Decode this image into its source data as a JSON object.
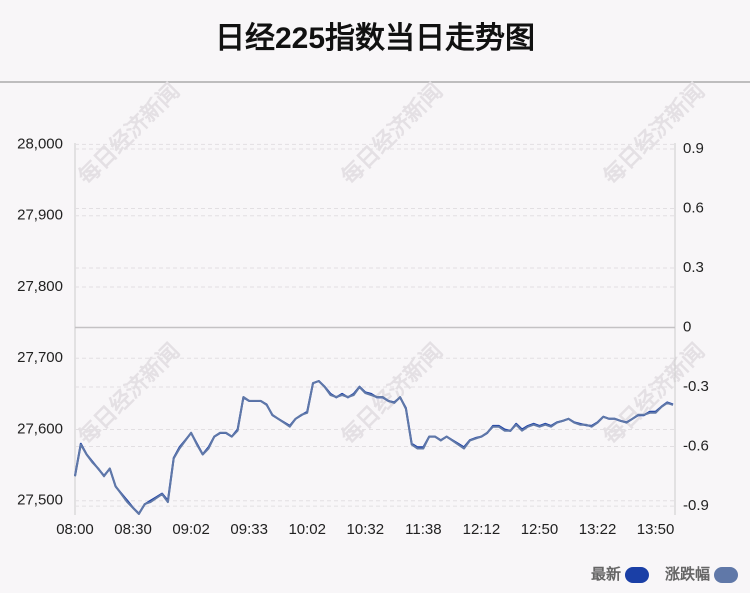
{
  "chart_data": {
    "type": "line",
    "title": "日经225指数当日走势图",
    "watermark": "每日经济新闻",
    "categories": [
      "08:00",
      null,
      null,
      null,
      null,
      null,
      null,
      null,
      null,
      null,
      "08:30",
      null,
      null,
      null,
      null,
      null,
      null,
      null,
      null,
      null,
      "09:02",
      null,
      null,
      null,
      null,
      null,
      null,
      null,
      null,
      null,
      "09:33",
      null,
      null,
      null,
      null,
      null,
      null,
      null,
      null,
      null,
      "10:02",
      null,
      null,
      null,
      null,
      null,
      null,
      null,
      null,
      null,
      "10:32",
      null,
      null,
      null,
      null,
      null,
      null,
      null,
      null,
      null,
      "11:38",
      null,
      null,
      null,
      null,
      null,
      null,
      null,
      null,
      null,
      "12:12",
      null,
      null,
      null,
      null,
      null,
      null,
      null,
      null,
      null,
      "12:50",
      null,
      null,
      null,
      null,
      null,
      null,
      null,
      null,
      null,
      "13:22",
      null,
      null,
      null,
      null,
      null,
      null,
      null,
      null,
      null,
      "13:50",
      null,
      null,
      null
    ],
    "series": [
      {
        "name": "最新",
        "color": "#1a3fa6",
        "values": [
          27535,
          27580,
          27565,
          27555,
          27545,
          27535,
          27545,
          27520,
          27510,
          27500,
          27490,
          27482,
          27495,
          27500,
          27505,
          27510,
          27500,
          27560,
          27575,
          27585,
          27595,
          27580,
          27565,
          27575,
          27590,
          27595,
          27595,
          27590,
          27600,
          27645,
          27640,
          27640,
          27640,
          27635,
          27620,
          27615,
          27610,
          27605,
          27615,
          27620,
          27625,
          27665,
          27668,
          27660,
          27650,
          27645,
          27650,
          27645,
          27650,
          27660,
          27652,
          27650,
          27645,
          27645,
          27640,
          27638,
          27645,
          27630,
          27580,
          27575,
          27575,
          27590,
          27590,
          27585,
          27590,
          27585,
          27580,
          27575,
          27585,
          27588,
          27590,
          27595,
          27605,
          27605,
          27600,
          27598,
          27608,
          27600,
          27605,
          27608,
          27605,
          27608,
          27605,
          27610,
          27612,
          27615,
          27610,
          27608,
          27606,
          27605,
          27610,
          27618,
          27615,
          27615,
          27612,
          27610,
          27615,
          27620,
          27620,
          27625,
          27625,
          27632,
          27638,
          27635
        ]
      },
      {
        "name": "涨跌幅",
        "color": "#6078a8",
        "axis": "y2",
        "values": [
          -0.75,
          -0.59,
          -0.64,
          -0.68,
          -0.71,
          -0.75,
          -0.71,
          -0.8,
          -0.84,
          -0.88,
          -0.91,
          -0.94,
          -0.89,
          -0.88,
          -0.86,
          -0.84,
          -0.88,
          -0.66,
          -0.61,
          -0.57,
          -0.53,
          -0.59,
          -0.64,
          -0.61,
          -0.55,
          -0.53,
          -0.53,
          -0.55,
          -0.52,
          -0.35,
          -0.37,
          -0.37,
          -0.37,
          -0.39,
          -0.44,
          -0.46,
          -0.48,
          -0.5,
          -0.46,
          -0.44,
          -0.43,
          -0.28,
          -0.27,
          -0.3,
          -0.34,
          -0.35,
          -0.34,
          -0.35,
          -0.34,
          -0.3,
          -0.33,
          -0.34,
          -0.35,
          -0.35,
          -0.37,
          -0.38,
          -0.35,
          -0.41,
          -0.59,
          -0.61,
          -0.61,
          -0.55,
          -0.55,
          -0.57,
          -0.55,
          -0.57,
          -0.59,
          -0.61,
          -0.57,
          -0.56,
          -0.55,
          -0.53,
          -0.5,
          -0.5,
          -0.52,
          -0.52,
          -0.49,
          -0.52,
          -0.5,
          -0.49,
          -0.5,
          -0.49,
          -0.5,
          -0.48,
          -0.47,
          -0.46,
          -0.48,
          -0.49,
          -0.49,
          -0.5,
          -0.48,
          -0.45,
          -0.46,
          -0.46,
          -0.47,
          -0.48,
          -0.46,
          -0.44,
          -0.44,
          -0.43,
          -0.43,
          -0.4,
          -0.38,
          -0.39
        ]
      }
    ],
    "ylim": [
      27480,
      28002
    ],
    "yticks": [
      {
        "value": 27500,
        "label": "27,500"
      },
      {
        "value": 27600,
        "label": "27,600"
      },
      {
        "value": 27700,
        "label": "27,700"
      },
      {
        "value": 27800,
        "label": "27,800"
      },
      {
        "value": 27900,
        "label": "27,900"
      },
      {
        "value": 28000,
        "label": "28,000"
      }
    ],
    "y2lim": [
      -0.945,
      0.93
    ],
    "y2ticks": [
      -0.9,
      -0.6,
      -0.3,
      0,
      0.3,
      0.6,
      0.9
    ],
    "grid": true
  }
}
